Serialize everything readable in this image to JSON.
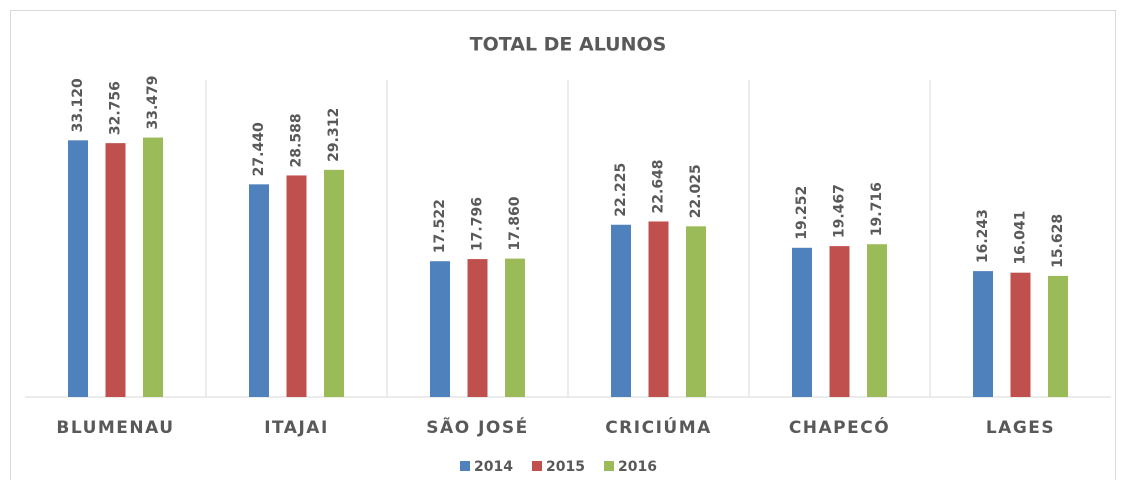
{
  "chart_data": {
    "type": "bar",
    "title": "TOTAL  DE ALUNOS",
    "categories": [
      "BLUMENAU",
      "ITAJAI",
      "SÃO JOSÉ",
      "CRICIÚMA",
      "CHAPECÓ",
      "LAGES"
    ],
    "series": [
      {
        "name": "2014",
        "color": "#4f81bd",
        "values": [
          33120,
          27440,
          17522,
          22225,
          19252,
          16243
        ],
        "value_labels": [
          "33.120",
          "27.440",
          "17.522",
          "22.225",
          "19.252",
          "16.243"
        ]
      },
      {
        "name": "2015",
        "color": "#c0504d",
        "values": [
          32756,
          28588,
          17796,
          22648,
          19467,
          16041
        ],
        "value_labels": [
          "32.756",
          "28.588",
          "17.796",
          "22.648",
          "19.467",
          "16.041"
        ]
      },
      {
        "name": "2016",
        "color": "#9bbb59",
        "values": [
          33479,
          29312,
          17860,
          22025,
          19716,
          15628
        ],
        "value_labels": [
          "33.479",
          "29.312",
          "17.860",
          "22.025",
          "19.716",
          "15.628"
        ]
      }
    ],
    "ylim": [
      0,
      40000
    ],
    "legend": "bottom"
  }
}
